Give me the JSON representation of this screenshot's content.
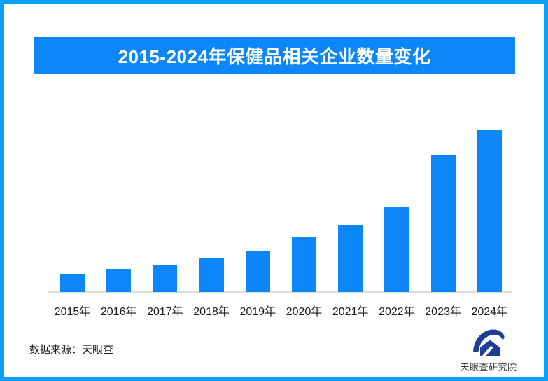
{
  "header": {
    "title": "2015-2024年保健品相关企业数量变化"
  },
  "chart_data": {
    "type": "bar",
    "title": "2015-2024年保健品相关企业数量变化",
    "categories": [
      "2015年",
      "2016年",
      "2017年",
      "2018年",
      "2019年",
      "2020年",
      "2021年",
      "2022年",
      "2023年",
      "2024年"
    ],
    "values": [
      11.3,
      14.3,
      16.9,
      21.2,
      25.1,
      34.2,
      41.6,
      52.4,
      84.4,
      100
    ],
    "xlabel": "",
    "ylabel": "",
    "ylim": [
      0,
      100
    ],
    "value_axis_visible": false,
    "grid": false,
    "legend": false,
    "bar_color": "#0c86f8"
  },
  "footer": {
    "source": "数据来源：天眼查"
  },
  "logo": {
    "label": "天眼查研究院"
  },
  "colors": {
    "accent": "#0c86f8",
    "frame_border": "#0aa0fa",
    "axis_line": "#dddddd",
    "logo_navy": "#1e3d96",
    "title_text": "#ffffff",
    "label_text": "#1a1a1a"
  }
}
